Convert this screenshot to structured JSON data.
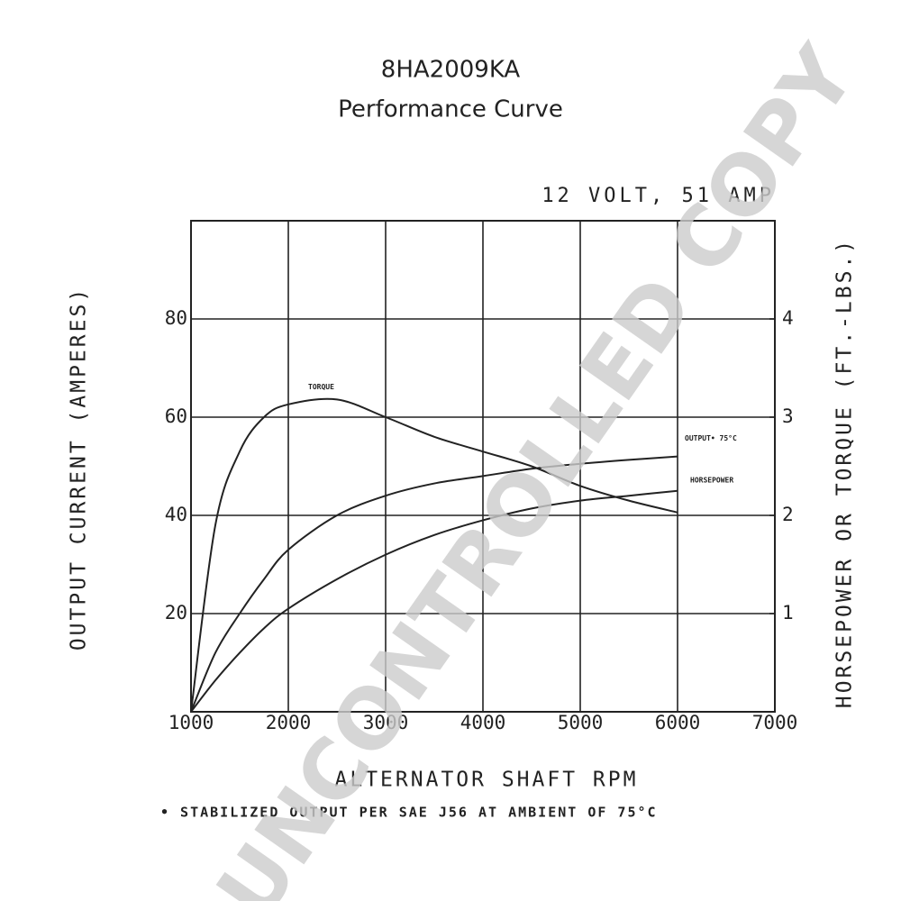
{
  "chart_data": {
    "type": "line",
    "title": "8HA2009KA",
    "subtitle": "Performance Curve",
    "annotation": "12 VOLT, 51 AMP",
    "x_label": "ALTERNATOR SHAFT RPM",
    "y_label": "OUTPUT CURRENT (AMPERES)",
    "y2_label": "HORSEPOWER OR TORQUE (FT.-LBS.)",
    "footnote": "• STABILIZED OUTPUT PER SAE J56 AT AMBIENT OF 75°C",
    "watermark": "UNCONTROLLED COPY",
    "x": [
      1000,
      1250,
      1500,
      1750,
      2000,
      2500,
      3000,
      3500,
      4000,
      4500,
      5000,
      5500,
      6000
    ],
    "xlim": [
      1000,
      7000
    ],
    "xticks": [
      1000,
      2000,
      3000,
      4000,
      5000,
      6000,
      7000
    ],
    "ylim": [
      0,
      100
    ],
    "yticks": [
      20,
      40,
      60,
      80
    ],
    "y2lim": [
      0,
      5
    ],
    "y2ticks": [
      1,
      2,
      3,
      4
    ],
    "grid": true,
    "series": [
      {
        "name": "TORQUE",
        "color": "#222222",
        "axis": "y2",
        "values": [
          0,
          1.9,
          2.65,
          3.0,
          3.13,
          3.18,
          3.0,
          2.8,
          2.65,
          2.5,
          2.3,
          2.15,
          2.03
        ]
      },
      {
        "name": "OUTPUT• 75°C",
        "color": "#222222",
        "values": [
          0,
          12,
          20,
          27,
          33,
          40,
          44,
          46.5,
          48,
          49.5,
          50.5,
          51.3,
          52
        ]
      },
      {
        "name": "HORSEPOWER",
        "color": "#222222",
        "axis": "y2",
        "values": [
          0,
          0.32,
          0.6,
          0.85,
          1.05,
          1.35,
          1.6,
          1.8,
          1.95,
          2.07,
          2.15,
          2.2,
          2.25
        ]
      }
    ]
  }
}
